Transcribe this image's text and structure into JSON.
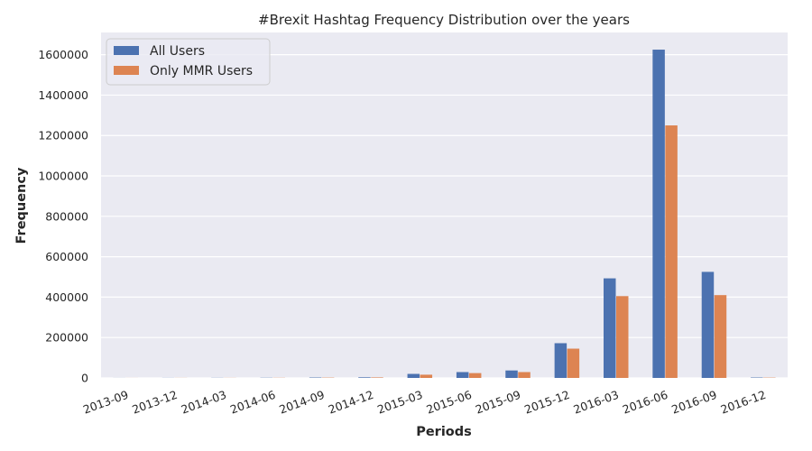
{
  "colors": {
    "plot_bg": "#eaeaf2",
    "grid": "#ffffff",
    "text": "#262626"
  },
  "chart_data": {
    "type": "bar",
    "title": "#Brexit Hashtag Frequency Distribution over the years",
    "xlabel": "Periods",
    "ylabel": "Frequency",
    "categories": [
      "2013-09",
      "2013-12",
      "2014-03",
      "2014-06",
      "2014-09",
      "2014-12",
      "2015-03",
      "2015-06",
      "2015-09",
      "2015-12",
      "2016-03",
      "2016-06",
      "2016-09",
      "2016-12"
    ],
    "series": [
      {
        "name": "All Users",
        "color": "#4c72b0",
        "values": [
          300,
          500,
          700,
          1000,
          2000,
          3000,
          20000,
          29000,
          37000,
          172000,
          493000,
          1625000,
          525000,
          2000
        ]
      },
      {
        "name": "Only MMR Users",
        "color": "#dd8452",
        "values": [
          200,
          400,
          500,
          800,
          1500,
          2500,
          16000,
          24000,
          29000,
          145000,
          405000,
          1250000,
          410000,
          1500
        ]
      }
    ],
    "ylim": [
      0,
      1710000
    ],
    "yticks": [
      0,
      200000,
      400000,
      600000,
      800000,
      1000000,
      1200000,
      1400000,
      1600000
    ],
    "ytick_labels": [
      "0",
      "200000",
      "400000",
      "600000",
      "800000",
      "1000000",
      "1200000",
      "1400000",
      "1600000"
    ],
    "grid": true,
    "legend_position": "upper-left",
    "xtick_rotation": "rotated"
  }
}
